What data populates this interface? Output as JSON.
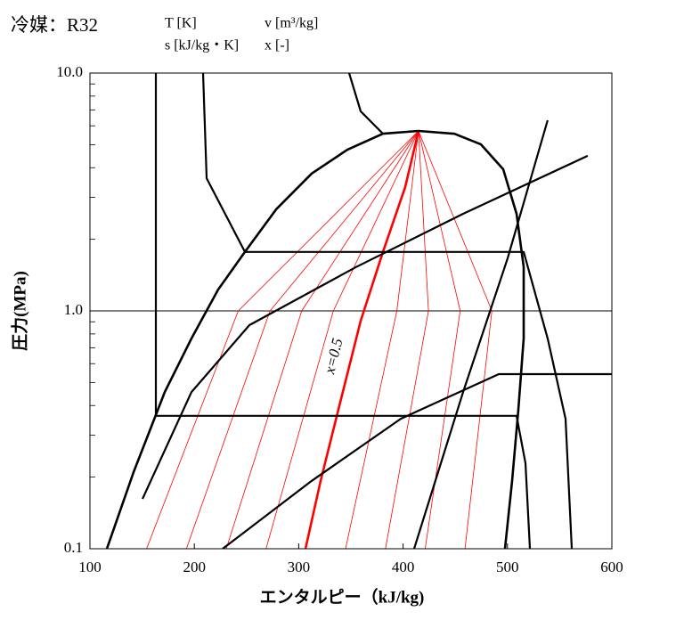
{
  "chart_data": {
    "type": "line",
    "title": "冷媒：R32",
    "labels": [
      "T [K]",
      "v [m³/kg]",
      "s [kJ/kg・K]",
      "x [-]"
    ],
    "annotation": "x=0.5",
    "xlabel": "エンタルピー（kJ/kg)",
    "ylabel": "圧力(MPa)",
    "xlim": [
      100,
      600
    ],
    "ylim": [
      0.1,
      10
    ],
    "log_y": true,
    "grid": true,
    "xticks": [
      100,
      200,
      300,
      400,
      500,
      600
    ],
    "yticks": [
      0.1,
      {
        "value": 1,
        "label": "1.0"
      },
      {
        "value": 10,
        "label": "10.0"
      }
    ],
    "series": [
      {
        "color": "#ff0000",
        "width": 0.8,
        "x": [
          154.3,
          242.1,
          414.8
        ],
        "values": [
          0.1,
          1.0,
          5.71
        ]
      },
      {
        "color": "#ff0000",
        "width": 0.8,
        "x": [
          192.4,
          272.5,
          414.8
        ],
        "values": [
          0.1,
          1.0,
          5.71
        ]
      },
      {
        "color": "#ff0000",
        "width": 0.8,
        "x": [
          230.6,
          302.9,
          414.8
        ],
        "values": [
          0.1,
          1.0,
          5.71
        ]
      },
      {
        "color": "#ff0000",
        "width": 0.8,
        "x": [
          268.7,
          333.2,
          414.8
        ],
        "values": [
          0.1,
          1.0,
          5.71
        ]
      },
      {
        "color": "#ff0000",
        "width": 0.8,
        "x": [
          344.9,
          394.0,
          414.8
        ],
        "values": [
          0.1,
          1.0,
          5.71
        ]
      },
      {
        "color": "#ff0000",
        "width": 0.8,
        "x": [
          383.1,
          424.3,
          414.8
        ],
        "values": [
          0.1,
          1.0,
          5.71
        ]
      },
      {
        "color": "#ff0000",
        "width": 0.8,
        "x": [
          421.2,
          454.7,
          414.8
        ],
        "values": [
          0.1,
          1.0,
          5.71
        ]
      },
      {
        "color": "#ff0000",
        "width": 0.8,
        "x": [
          459.3,
          485.1,
          414.8
        ],
        "values": [
          0.1,
          1.0,
          5.71
        ]
      },
      {
        "color": "#ff0000",
        "width": 2.6,
        "x": [
          306.5,
          321.0,
          338.0,
          359.4,
          380.7,
          402.0,
          414.8
        ],
        "values": [
          0.1,
          0.193,
          0.384,
          0.909,
          1.77,
          3.31,
          5.71
        ]
      },
      {
        "color": "#000000",
        "width": 2.6,
        "x": [
          116.2,
          141.8,
          171.7,
          197.3,
          222.9,
          248.5,
          278.3,
          312.5,
          346.6,
          380.7,
          414.8
        ],
        "values": [
          0.1,
          0.21,
          0.456,
          0.766,
          1.23,
          1.77,
          2.67,
          3.78,
          4.76,
          5.56,
          5.71
        ]
      },
      {
        "color": "#000000",
        "width": 2.6,
        "x": [
          414.8,
          449.0,
          474.6,
          495.9,
          508.7,
          515.5,
          515.5,
          510.4,
          504.4,
          497.6
        ],
        "values": [
          5.71,
          5.56,
          5.01,
          3.94,
          2.56,
          1.53,
          0.766,
          0.384,
          0.193,
          0.1
        ]
      },
      {
        "color": "#000000",
        "width": 2.2,
        "x": [
          163.1,
          163.1,
          508.7,
          517.2,
          521.5
        ],
        "values": [
          10.0,
          0.362,
          0.362,
          0.229,
          0.1
        ]
      },
      {
        "color": "#000000",
        "width": 2.2,
        "x": [
          208.4,
          211.8,
          248.5,
          515.5,
          538.5,
          555.6,
          561.6
        ],
        "values": [
          10.0,
          3.61,
          1.77,
          1.77,
          0.766,
          0.352,
          0.1
        ]
      },
      {
        "color": "#000000",
        "width": 2.2,
        "x": [
          348.3,
          359.4,
          380.7
        ],
        "values": [
          10.0,
          6.9,
          5.56
        ]
      },
      {
        "color": "#000000",
        "width": 2.2,
        "x": [
          410.6,
          457.5,
          500.1,
          538.5
        ],
        "values": [
          0.1,
          0.456,
          1.66,
          6.33
        ]
      },
      {
        "color": "#000000",
        "width": 2.2,
        "x": [
          227.1,
          312.5,
          397.8,
          491.6,
          600.0
        ],
        "values": [
          0.1,
          0.193,
          0.352,
          0.542,
          0.542
        ]
      },
      {
        "color": "#000000",
        "width": 2.2,
        "x": [
          150.3,
          197.3,
          252.7,
          355.1,
          457.5,
          576.9
        ],
        "values": [
          0.162,
          0.456,
          0.871,
          1.53,
          2.56,
          4.49
        ]
      }
    ]
  }
}
